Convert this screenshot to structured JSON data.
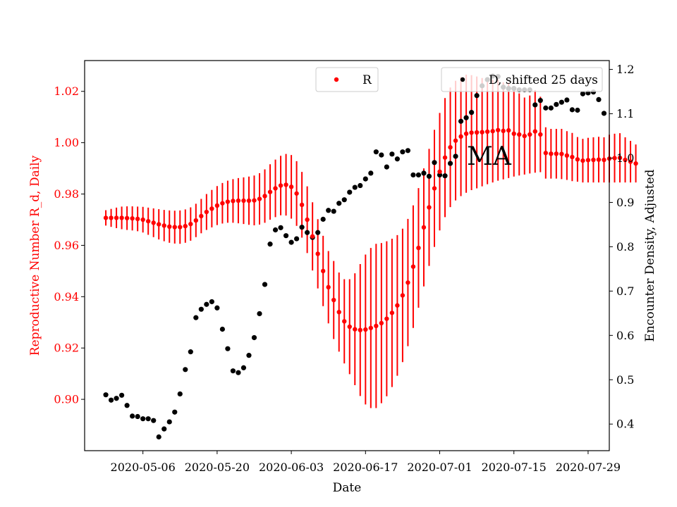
{
  "chart_data": {
    "type": "scatter",
    "xlabel": "Date",
    "ylabel_left": "Reproductive Number R_d, Daily",
    "ylabel_right": "Encounter Density, Adjusted",
    "annotation": "MA",
    "x_axis": {
      "tick_labels": [
        "2020-05-06",
        "2020-05-20",
        "2020-06-03",
        "2020-06-17",
        "2020-07-01",
        "2020-07-15",
        "2020-07-29"
      ],
      "range": [
        "2020-04-25",
        "2020-08-02"
      ]
    },
    "y_left": {
      "range": [
        0.88,
        1.032
      ],
      "ticks": [
        0.9,
        0.92,
        0.94,
        0.96,
        0.98,
        1.0,
        1.02
      ],
      "tick_labels": [
        "0.90",
        "0.92",
        "0.94",
        "0.96",
        "0.98",
        "1.00",
        "1.02"
      ]
    },
    "y_right": {
      "range": [
        0.34,
        1.22
      ],
      "ticks": [
        0.4,
        0.5,
        0.6,
        0.7,
        0.8,
        0.9,
        1.0,
        1.1,
        1.2
      ],
      "tick_labels": [
        "0.4",
        "0.5",
        "0.6",
        "0.7",
        "0.8",
        "0.9",
        "1.0",
        "1.1",
        "1.2"
      ]
    },
    "series": [
      {
        "name": "R",
        "axis": "left",
        "color": "#ff0000",
        "start_date": "2020-04-29",
        "values": [
          0.9707,
          0.9707,
          0.9707,
          0.9707,
          0.9706,
          0.9705,
          0.9703,
          0.97,
          0.9694,
          0.9688,
          0.9682,
          0.9677,
          0.9673,
          0.9671,
          0.9671,
          0.9675,
          0.9683,
          0.9697,
          0.9714,
          0.973,
          0.9743,
          0.9755,
          0.9764,
          0.977,
          0.9773,
          0.9774,
          0.9774,
          0.9774,
          0.9775,
          0.9781,
          0.9792,
          0.9808,
          0.9822,
          0.9833,
          0.9836,
          0.9828,
          0.9802,
          0.9758,
          0.97,
          0.9635,
          0.9567,
          0.95,
          0.9437,
          0.9387,
          0.934,
          0.9304,
          0.9283,
          0.9273,
          0.927,
          0.9272,
          0.9278,
          0.9286,
          0.9297,
          0.9314,
          0.9337,
          0.9366,
          0.9405,
          0.9455,
          0.9517,
          0.959,
          0.967,
          0.9748,
          0.9822,
          0.9887,
          0.9942,
          0.9982,
          1.0008,
          1.0024,
          1.0035,
          1.0039,
          1.004,
          1.0041,
          1.0043,
          1.0045,
          1.0049,
          1.0046,
          1.0048,
          1.0035,
          1.0032,
          1.0026,
          1.0032,
          1.0044,
          1.0032,
          0.996,
          0.9957,
          0.9957,
          0.9956,
          0.995,
          0.9944,
          0.9935,
          0.993,
          0.9932,
          0.9933,
          0.9934,
          0.9933,
          0.9938,
          0.994,
          0.9941,
          0.9933,
          0.9926,
          0.9919
        ],
        "error_low": [
          0.9677,
          0.9672,
          0.9667,
          0.9663,
          0.966,
          0.9658,
          0.9655,
          0.965,
          0.9641,
          0.9632,
          0.9623,
          0.9616,
          0.961,
          0.9607,
          0.9606,
          0.961,
          0.9618,
          0.9632,
          0.9647,
          0.966,
          0.967,
          0.9679,
          0.9685,
          0.9688,
          0.9688,
          0.9686,
          0.9683,
          0.968,
          0.9678,
          0.9681,
          0.9688,
          0.97,
          0.971,
          0.9717,
          0.9716,
          0.9704,
          0.9676,
          0.963,
          0.957,
          0.9502,
          0.9432,
          0.9363,
          0.9296,
          0.9235,
          0.9186,
          0.914,
          0.9098,
          0.9055,
          0.9013,
          0.898,
          0.8966,
          0.8966,
          0.8985,
          0.9012,
          0.9048,
          0.9092,
          0.9145,
          0.9207,
          0.9278,
          0.9357,
          0.944,
          0.952,
          0.9594,
          0.9658,
          0.971,
          0.9749,
          0.9775,
          0.9792,
          0.9805,
          0.9815,
          0.9822,
          0.983,
          0.9838,
          0.9845,
          0.9852,
          0.9857,
          0.9862,
          0.9868,
          0.9872,
          0.9876,
          0.988,
          0.9883,
          0.9885,
          0.986,
          0.986,
          0.986,
          0.9858,
          0.9855,
          0.985,
          0.9848,
          0.9845,
          0.9845,
          0.9845,
          0.9845,
          0.9845,
          0.9845,
          0.9845,
          0.9845,
          0.9845,
          0.9845,
          0.9845
        ],
        "error_high": [
          0.9737,
          0.9742,
          0.9747,
          0.9751,
          0.9752,
          0.9752,
          0.9751,
          0.975,
          0.9747,
          0.9744,
          0.9741,
          0.9738,
          0.9736,
          0.9735,
          0.9736,
          0.974,
          0.9748,
          0.9762,
          0.9781,
          0.98,
          0.9816,
          0.9831,
          0.9843,
          0.9852,
          0.9858,
          0.9862,
          0.9865,
          0.9868,
          0.9872,
          0.9881,
          0.9896,
          0.9916,
          0.9934,
          0.9949,
          0.9956,
          0.9952,
          0.9928,
          0.9886,
          0.983,
          0.9768,
          0.9702,
          0.9637,
          0.9578,
          0.9539,
          0.9494,
          0.9468,
          0.9468,
          0.9491,
          0.9527,
          0.9564,
          0.959,
          0.9606,
          0.9609,
          0.9616,
          0.9626,
          0.964,
          0.9665,
          0.9703,
          0.9756,
          0.9823,
          0.99,
          0.9976,
          1.005,
          1.0116,
          1.0174,
          1.0215,
          1.0241,
          1.0256,
          1.0265,
          1.0263,
          1.0258,
          1.0252,
          1.0248,
          1.0245,
          1.0246,
          1.0235,
          1.0234,
          1.0202,
          1.0192,
          1.0176,
          1.0184,
          1.0205,
          1.0179,
          1.006,
          1.0054,
          1.0054,
          1.0054,
          1.0045,
          1.0038,
          1.0022,
          1.0015,
          1.0019,
          1.0021,
          1.0023,
          1.0021,
          1.0031,
          1.0035,
          1.0037,
          1.0021,
          1.0007,
          0.9993
        ]
      },
      {
        "name": "D, shifted 25 days",
        "axis": "right",
        "color": "#000000",
        "start_date": "2020-04-29",
        "values": [
          0.466,
          0.454,
          0.458,
          0.465,
          0.442,
          0.418,
          0.417,
          0.412,
          0.412,
          0.408,
          0.371,
          0.389,
          0.405,
          0.427,
          0.468,
          0.523,
          0.563,
          0.64,
          0.659,
          0.67,
          0.676,
          0.662,
          0.614,
          0.57,
          0.52,
          0.516,
          0.527,
          0.555,
          0.595,
          0.649,
          0.715,
          0.806,
          0.838,
          0.843,
          0.825,
          0.81,
          0.818,
          0.844,
          0.832,
          0.821,
          0.832,
          0.862,
          0.882,
          0.88,
          0.898,
          0.906,
          0.923,
          0.934,
          0.938,
          0.953,
          0.966,
          1.014,
          1.007,
          0.98,
          1.009,
          0.998,
          1.014,
          1.017,
          0.962,
          0.962,
          0.966,
          0.959,
          0.99,
          0.962,
          0.96,
          0.988,
          1.004,
          1.083,
          1.091,
          1.103,
          1.141,
          1.163,
          1.177,
          1.185,
          1.184,
          1.16,
          1.157,
          1.157,
          1.154,
          1.154,
          1.154,
          1.12,
          1.13,
          1.113,
          1.113,
          1.121,
          1.126,
          1.131,
          1.109,
          1.108,
          1.145,
          1.147,
          1.149,
          1.132,
          1.101
        ]
      }
    ]
  }
}
